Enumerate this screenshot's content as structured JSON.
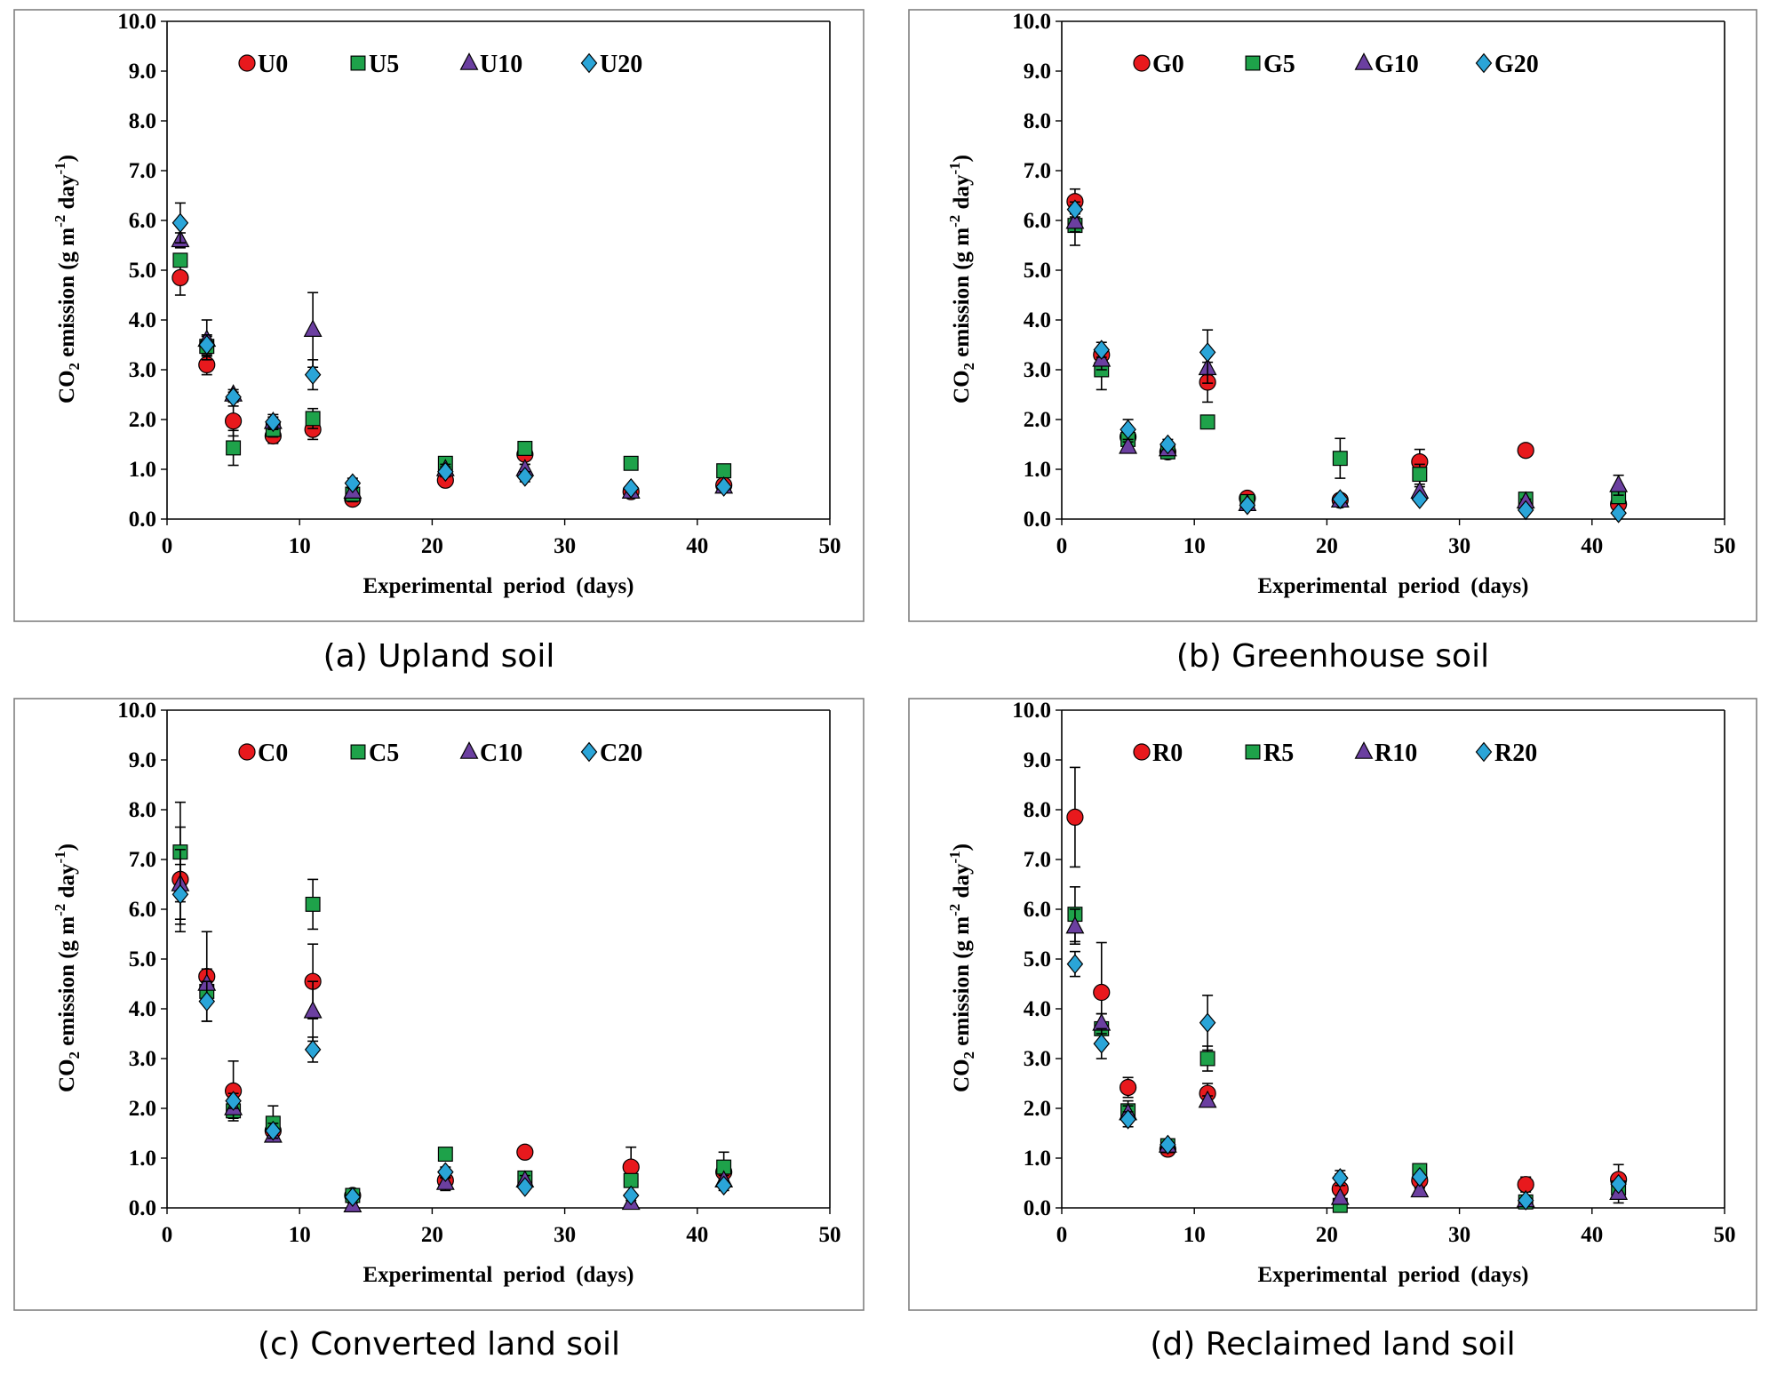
{
  "figure": {
    "series_colors": {
      "0": "#e8191d",
      "5": "#1ea24a",
      "10": "#6b3fa0",
      "20": "#2aa5d8"
    },
    "marker_shapes": {
      "0": "circle",
      "5": "square",
      "10": "triangle",
      "20": "diamond"
    }
  },
  "chart_data": [
    {
      "id": "a",
      "type": "scatter",
      "caption": "(a) Upland soil",
      "xlabel": "Experimental period (days)",
      "ylabel_prefix": "CO",
      "ylabel_sub": "2",
      "ylabel_mid": " emission (g m",
      "ylabel_sup1": "-2",
      "ylabel_mid2": " day",
      "ylabel_sup2": "-1",
      "ylabel_end": ")",
      "xlim": [
        0,
        50
      ],
      "ylim": [
        0,
        10
      ],
      "xticks": [
        "0",
        "10",
        "20",
        "30",
        "40",
        "50"
      ],
      "yticks": [
        "0.0",
        "1.0",
        "2.0",
        "3.0",
        "4.0",
        "5.0",
        "6.0",
        "7.0",
        "8.0",
        "9.0",
        "10.0"
      ],
      "x": [
        1,
        3,
        5,
        8,
        11,
        14,
        21,
        27,
        35,
        42
      ],
      "series": [
        {
          "name": "U0",
          "key": "0",
          "values": [
            4.85,
            3.1,
            1.97,
            1.67,
            1.8,
            0.4,
            0.78,
            1.3,
            0.55,
            0.68
          ],
          "errors": [
            0.35,
            0.2,
            0.3,
            0.15,
            0.2,
            0.1,
            0.1,
            0.2,
            0.1,
            0.1
          ]
        },
        {
          "name": "U5",
          "key": "5",
          "values": [
            5.2,
            3.47,
            1.43,
            1.8,
            2.02,
            0.5,
            1.12,
            1.42,
            1.12,
            0.97
          ],
          "errors": [
            0.1,
            0.2,
            0.35,
            0.15,
            0.2,
            0.15,
            0.1,
            0.1,
            0.05,
            0.1
          ]
        },
        {
          "name": "U10",
          "key": "10",
          "values": [
            5.6,
            3.6,
            2.5,
            1.95,
            3.8,
            0.55,
            1.0,
            1.0,
            0.55,
            0.65
          ],
          "errors": [
            0.15,
            0.4,
            0.1,
            0.15,
            0.75,
            0.1,
            0.1,
            0.1,
            0.05,
            0.05
          ]
        },
        {
          "name": "U20",
          "key": "20",
          "values": [
            5.95,
            3.5,
            2.45,
            1.95,
            2.9,
            0.72,
            0.95,
            0.85,
            0.62,
            0.65
          ],
          "errors": [
            0.4,
            0.2,
            0.1,
            0.1,
            0.3,
            0.1,
            0.1,
            0.1,
            0.05,
            0.05
          ]
        }
      ]
    },
    {
      "id": "b",
      "type": "scatter",
      "caption": "(b) Greenhouse soil",
      "xlabel": "Experimental period (days)",
      "ylabel_prefix": "CO",
      "ylabel_sub": "2",
      "ylabel_mid": " emission (g m",
      "ylabel_sup1": "-2",
      "ylabel_mid2": " day",
      "ylabel_sup2": "-1",
      "ylabel_end": ")",
      "xlim": [
        0,
        50
      ],
      "ylim": [
        0,
        10
      ],
      "xticks": [
        "0",
        "10",
        "20",
        "30",
        "40",
        "50"
      ],
      "yticks": [
        "0.0",
        "1.0",
        "2.0",
        "3.0",
        "4.0",
        "5.0",
        "6.0",
        "7.0",
        "8.0",
        "9.0",
        "10.0"
      ],
      "x": [
        1,
        3,
        5,
        8,
        11,
        14,
        21,
        27,
        35,
        42
      ],
      "series": [
        {
          "name": "G0",
          "key": "0",
          "values": [
            6.38,
            3.3,
            1.65,
            1.35,
            2.75,
            0.42,
            0.38,
            1.15,
            1.38,
            0.3
          ],
          "errors": [
            0.25,
            0.15,
            0.15,
            0.1,
            0.4,
            0.05,
            0.1,
            0.25,
            0.05,
            0.1
          ]
        },
        {
          "name": "G5",
          "key": "5",
          "values": [
            5.9,
            3.0,
            1.6,
            1.35,
            1.95,
            0.35,
            1.22,
            0.9,
            0.4,
            0.45
          ],
          "errors": [
            0.4,
            0.4,
            0.2,
            0.1,
            0.1,
            0.05,
            0.4,
            0.2,
            0.05,
            0.1
          ]
        },
        {
          "name": "G10",
          "key": "10",
          "values": [
            5.97,
            3.2,
            1.45,
            1.4,
            3.03,
            0.3,
            0.37,
            0.55,
            0.35,
            0.68
          ],
          "errors": [
            0.2,
            0.2,
            0.1,
            0.1,
            0.3,
            0.05,
            0.05,
            0.1,
            0.05,
            0.2
          ]
        },
        {
          "name": "G20",
          "key": "20",
          "values": [
            6.22,
            3.4,
            1.8,
            1.5,
            3.35,
            0.28,
            0.4,
            0.4,
            0.18,
            0.12
          ],
          "errors": [
            0.15,
            0.15,
            0.2,
            0.1,
            0.45,
            0.05,
            0.05,
            0.05,
            0.05,
            0.05
          ]
        }
      ]
    },
    {
      "id": "c",
      "type": "scatter",
      "caption": "(c) Converted land soil",
      "xlabel": "Experimental period (days)",
      "ylabel_prefix": "CO",
      "ylabel_sub": "2",
      "ylabel_mid": " emission (g m",
      "ylabel_sup1": "-2",
      "ylabel_mid2": " day",
      "ylabel_sup2": "-1",
      "ylabel_end": ")",
      "xlim": [
        0,
        50
      ],
      "ylim": [
        0,
        10
      ],
      "xticks": [
        "0",
        "10",
        "20",
        "30",
        "40",
        "50"
      ],
      "yticks": [
        "0.0",
        "1.0",
        "2.0",
        "3.0",
        "4.0",
        "5.0",
        "6.0",
        "7.0",
        "8.0",
        "9.0",
        "10.0"
      ],
      "x": [
        1,
        3,
        5,
        8,
        11,
        14,
        21,
        27,
        35,
        42
      ],
      "series": [
        {
          "name": "C0",
          "key": "0",
          "values": [
            6.6,
            4.65,
            2.35,
            1.55,
            4.55,
            0.25,
            0.55,
            1.12,
            0.82,
            0.72
          ],
          "errors": [
            1.05,
            0.9,
            0.6,
            0.15,
            0.75,
            0.05,
            0.2,
            0.05,
            0.4,
            0.15
          ]
        },
        {
          "name": "C5",
          "key": "5",
          "values": [
            7.15,
            4.35,
            1.95,
            1.7,
            6.1,
            0.25,
            1.08,
            0.6,
            0.55,
            0.82
          ],
          "errors": [
            1.0,
            0.2,
            0.1,
            0.35,
            0.5,
            0.05,
            0.05,
            0.1,
            0.1,
            0.3
          ]
        },
        {
          "name": "C10",
          "key": "10",
          "values": [
            6.5,
            4.5,
            2.0,
            1.45,
            3.95,
            0.05,
            0.5,
            0.55,
            0.1,
            0.55
          ],
          "errors": [
            0.7,
            0.3,
            0.2,
            0.1,
            0.6,
            0.05,
            0.1,
            0.1,
            0.05,
            0.1
          ]
        },
        {
          "name": "C20",
          "key": "20",
          "values": [
            6.3,
            4.15,
            2.15,
            1.55,
            3.18,
            0.22,
            0.72,
            0.42,
            0.25,
            0.45
          ],
          "errors": [
            0.6,
            0.4,
            0.15,
            0.15,
            0.25,
            0.05,
            0.1,
            0.05,
            0.05,
            0.1
          ]
        }
      ]
    },
    {
      "id": "d",
      "type": "scatter",
      "caption": "(d) Reclaimed land soil",
      "xlabel": "Experimental period (days)",
      "ylabel_prefix": "CO",
      "ylabel_sub": "2",
      "ylabel_mid": " emission (g m",
      "ylabel_sup1": "-2",
      "ylabel_mid2": " day",
      "ylabel_sup2": "-1",
      "ylabel_end": ")",
      "xlim": [
        0,
        50
      ],
      "ylim": [
        0,
        10
      ],
      "xticks": [
        "0",
        "10",
        "20",
        "30",
        "40",
        "50"
      ],
      "yticks": [
        "0.0",
        "1.0",
        "2.0",
        "3.0",
        "4.0",
        "5.0",
        "6.0",
        "7.0",
        "8.0",
        "9.0",
        "10.0"
      ],
      "x": [
        1,
        3,
        5,
        8,
        11,
        21,
        27,
        35,
        42
      ],
      "series": [
        {
          "name": "R0",
          "key": "0",
          "values": [
            7.85,
            4.33,
            2.42,
            1.18,
            2.3,
            0.38,
            0.55,
            0.47,
            0.57
          ],
          "errors": [
            1.0,
            1.0,
            0.2,
            0.1,
            0.2,
            0.3,
            0.15,
            0.15,
            0.3
          ]
        },
        {
          "name": "R5",
          "key": "5",
          "values": [
            5.9,
            3.6,
            1.95,
            1.25,
            3.0,
            0.05,
            0.75,
            0.12,
            0.4
          ],
          "errors": [
            0.55,
            0.3,
            0.2,
            0.1,
            0.25,
            0.05,
            0.1,
            0.05,
            0.1
          ]
        },
        {
          "name": "R10",
          "key": "10",
          "values": [
            5.65,
            3.7,
            1.9,
            1.25,
            2.15,
            0.2,
            0.35,
            0.15,
            0.3
          ],
          "errors": [
            0.35,
            0.2,
            0.15,
            0.05,
            0.1,
            0.05,
            0.05,
            0.05,
            0.2
          ]
        },
        {
          "name": "R20",
          "key": "20",
          "values": [
            4.9,
            3.3,
            1.78,
            1.27,
            3.72,
            0.6,
            0.62,
            0.15,
            0.48
          ],
          "errors": [
            0.25,
            0.3,
            0.15,
            0.05,
            0.55,
            0.15,
            0.05,
            0.05,
            0.05
          ]
        }
      ]
    }
  ]
}
